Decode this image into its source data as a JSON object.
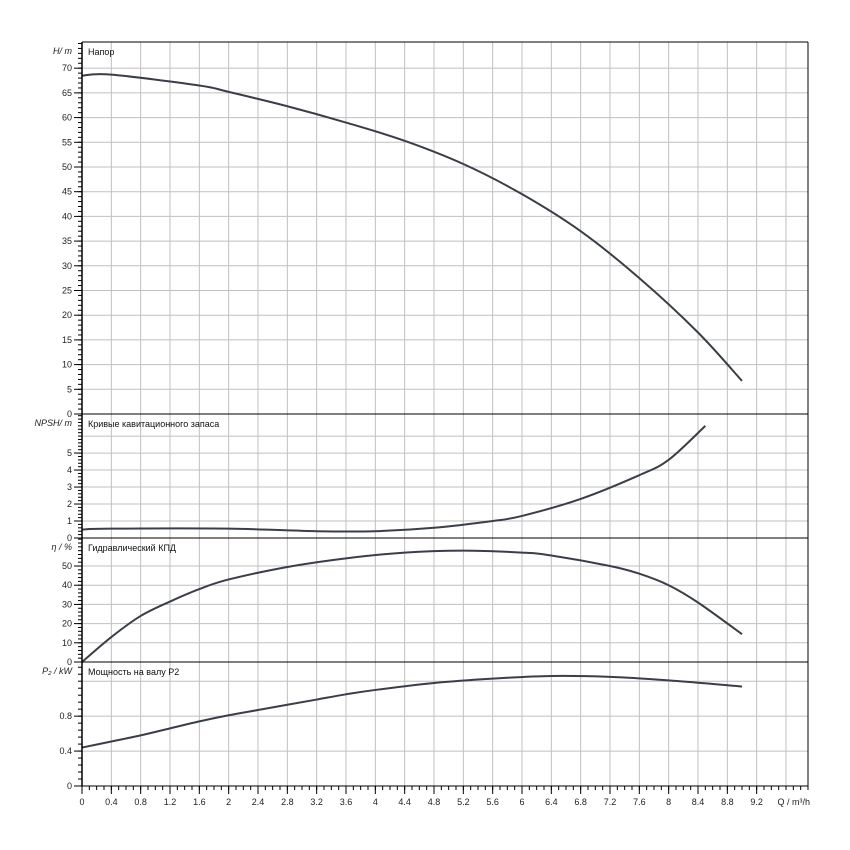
{
  "chart_data": [
    {
      "type": "line",
      "title": "Напор",
      "ylabel": "H/ m",
      "ylim": [
        0,
        75.3
      ],
      "yticks": [
        0,
        5,
        10,
        15,
        20,
        25,
        30,
        35,
        40,
        45,
        50,
        55,
        60,
        65,
        70
      ],
      "grid": true,
      "x": [
        0,
        0.4,
        1.6,
        2.0,
        2.8,
        3.6,
        4.4,
        5.2,
        6.0,
        6.8,
        7.6,
        8.4,
        9.0
      ],
      "values": [
        68.5,
        68.7,
        66.5,
        65.2,
        62.3,
        59.0,
        55.3,
        50.6,
        44.5,
        37.0,
        27.5,
        16.5,
        6.7
      ]
    },
    {
      "type": "line",
      "title": "Кривые кавитационного запаса",
      "ylabel": "NPSH/ m",
      "ylim": [
        0,
        7.3
      ],
      "yticks": [
        0,
        1,
        2,
        3,
        4,
        5
      ],
      "gridlines": [
        1,
        2,
        3,
        4,
        5,
        6
      ],
      "grid": true,
      "x": [
        0,
        0.4,
        2.0,
        3.2,
        4.0,
        4.8,
        5.6,
        6.0,
        6.8,
        7.6,
        8.0,
        8.5
      ],
      "values": [
        0.5,
        0.55,
        0.55,
        0.4,
        0.4,
        0.6,
        1.0,
        1.3,
        2.3,
        3.7,
        4.6,
        6.6
      ]
    },
    {
      "type": "line",
      "title": "Гидравлический КПД",
      "ylabel": "η / %",
      "ylim": [
        0,
        64.6
      ],
      "yticks": [
        0,
        10,
        20,
        30,
        40,
        50
      ],
      "grid": true,
      "x": [
        0,
        0.4,
        0.8,
        1.2,
        1.6,
        2.0,
        2.8,
        3.6,
        4.4,
        5.2,
        6.0,
        6.4,
        7.2,
        7.6,
        8.0,
        8.4,
        9.0
      ],
      "values": [
        0,
        13,
        24,
        31.5,
        38,
        43,
        49.5,
        54,
        57,
        58,
        57,
        55.5,
        50,
        46,
        40,
        31,
        14.5
      ]
    },
    {
      "type": "line",
      "title": "Мощность на валу P2",
      "ylabel": "P₂ / kW",
      "ylim": [
        0,
        1.42
      ],
      "yticks": [
        0,
        0.4,
        0.8
      ],
      "ytick_labels": [
        "0",
        "0.4",
        "0.8"
      ],
      "gridlines": [
        0.4,
        0.8,
        1.2
      ],
      "grid": true,
      "x": [
        0,
        0.4,
        0.8,
        1.2,
        1.6,
        2.0,
        2.4,
        2.8,
        3.2,
        3.6,
        4.0,
        4.8,
        5.6,
        6.4,
        7.2,
        8.0,
        9.0
      ],
      "values": [
        0.44,
        0.51,
        0.58,
        0.66,
        0.74,
        0.81,
        0.87,
        0.93,
        0.99,
        1.05,
        1.1,
        1.18,
        1.23,
        1.26,
        1.25,
        1.21,
        1.14
      ]
    }
  ],
  "x_axis": {
    "label": "Q / m³/h",
    "xlim": [
      0,
      9.9
    ],
    "ticks": [
      0,
      0.4,
      0.8,
      1.2,
      1.6,
      2,
      2.4,
      2.8,
      3.2,
      3.6,
      4,
      4.4,
      4.8,
      5.2,
      5.6,
      6,
      6.4,
      6.8,
      7.2,
      7.6,
      8,
      8.4,
      8.8,
      9.2
    ],
    "tick_labels": [
      "0",
      "0.4",
      "0.8",
      "1.2",
      "1.6",
      "2",
      "2.4",
      "2.8",
      "3.2",
      "3.6",
      "4",
      "4.4",
      "4.8",
      "5.2",
      "5.6",
      "6",
      "6.4",
      "6.8",
      "7.2",
      "7.6",
      "8",
      "8.4",
      "8.8",
      "9.2"
    ],
    "gridlines": [
      0.4,
      0.8,
      1.2,
      1.6,
      2,
      2.4,
      2.8,
      3.2,
      3.6,
      4,
      4.4,
      4.8,
      5.2,
      5.6,
      6,
      6.4,
      6.8,
      7.2,
      7.6,
      8,
      8.4,
      8.8,
      9.2,
      9.6
    ]
  },
  "colors": {
    "curve": "#3a3f47",
    "grid": "#c0c0c0",
    "axis": "#000000"
  }
}
